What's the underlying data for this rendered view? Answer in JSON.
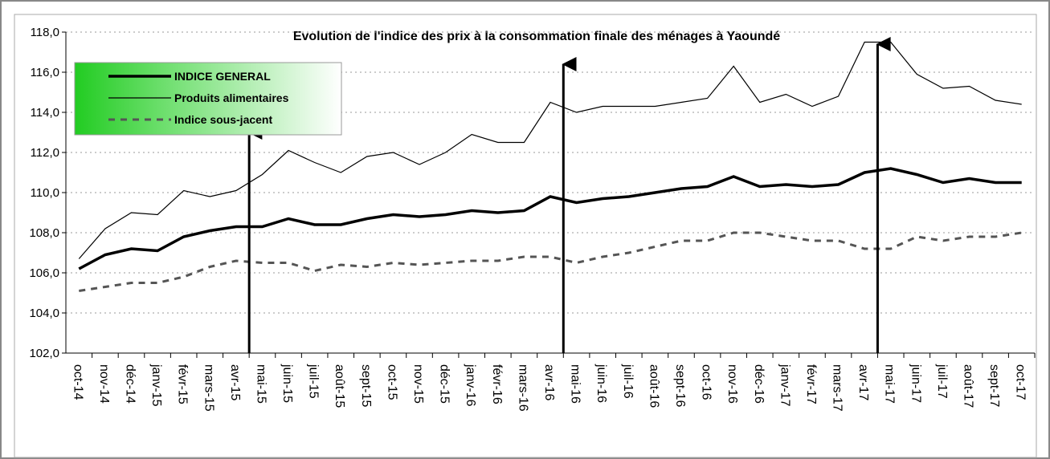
{
  "chart_data": {
    "type": "line",
    "title": "Evolution de l'indice des prix à la consommation finale des ménages à Yaoundé",
    "categories": [
      "oct-14",
      "nov-14",
      "déc-14",
      "janv-15",
      "févr-15",
      "mars-15",
      "avr-15",
      "mai-15",
      "juin-15",
      "juil-15",
      "août-15",
      "sept-15",
      "oct-15",
      "nov-15",
      "déc-15",
      "janv-16",
      "févr-16",
      "mars-16",
      "avr-16",
      "mai-16",
      "juin-16",
      "juil-16",
      "août-16",
      "sept-16",
      "oct-16",
      "nov-16",
      "déc-16",
      "janv-17",
      "févr-17",
      "mars-17",
      "avr-17",
      "mai-17",
      "juin-17",
      "juil-17",
      "août-17",
      "sept-17",
      "oct-17"
    ],
    "series": [
      {
        "name": "INDICE GENERAL",
        "color": "#000000",
        "width": 3.5,
        "dash": false,
        "values": [
          106.2,
          106.9,
          107.2,
          107.1,
          107.8,
          108.1,
          108.3,
          108.3,
          108.7,
          108.4,
          108.4,
          108.7,
          108.9,
          108.8,
          108.9,
          109.1,
          109.0,
          109.1,
          109.8,
          109.5,
          109.7,
          109.8,
          110.0,
          110.2,
          110.3,
          110.8,
          110.3,
          110.4,
          110.3,
          110.4,
          111.0,
          111.2,
          110.9,
          110.5,
          110.7,
          110.5,
          110.5
        ]
      },
      {
        "name": "Produits alimentaires",
        "color": "#000000",
        "width": 1.2,
        "dash": false,
        "values": [
          106.7,
          108.2,
          109.0,
          108.9,
          110.1,
          109.8,
          110.1,
          110.9,
          112.1,
          111.5,
          111.0,
          111.8,
          112.0,
          111.4,
          112.0,
          112.9,
          112.5,
          112.5,
          114.5,
          114.0,
          114.3,
          114.3,
          114.3,
          114.5,
          114.7,
          116.3,
          114.5,
          114.9,
          114.3,
          114.8,
          117.5,
          117.5,
          115.9,
          115.2,
          115.3,
          114.6,
          114.4
        ]
      },
      {
        "name": "Indice sous-jacent",
        "color": "#555555",
        "width": 3,
        "dash": true,
        "values": [
          105.1,
          105.3,
          105.5,
          105.5,
          105.8,
          106.3,
          106.6,
          106.5,
          106.5,
          106.1,
          106.4,
          106.3,
          106.5,
          106.4,
          106.5,
          106.6,
          106.6,
          106.8,
          106.8,
          106.5,
          106.8,
          107.0,
          107.3,
          107.6,
          107.6,
          108.0,
          108.0,
          107.8,
          107.6,
          107.6,
          107.2,
          107.2,
          107.8,
          107.6,
          107.8,
          107.8,
          108.0
        ]
      }
    ],
    "ylim": [
      102,
      118
    ],
    "yticks": [
      {
        "value": 102,
        "label": "102,0"
      },
      {
        "value": 104,
        "label": "104,0"
      },
      {
        "value": 106,
        "label": "106,0"
      },
      {
        "value": 108,
        "label": "108,0"
      },
      {
        "value": 110,
        "label": "110,0"
      },
      {
        "value": 112,
        "label": "112,0"
      },
      {
        "value": 114,
        "label": "114,0"
      },
      {
        "value": 116,
        "label": "116,0"
      },
      {
        "value": 118,
        "label": "118,0"
      }
    ],
    "grid": true
  }
}
